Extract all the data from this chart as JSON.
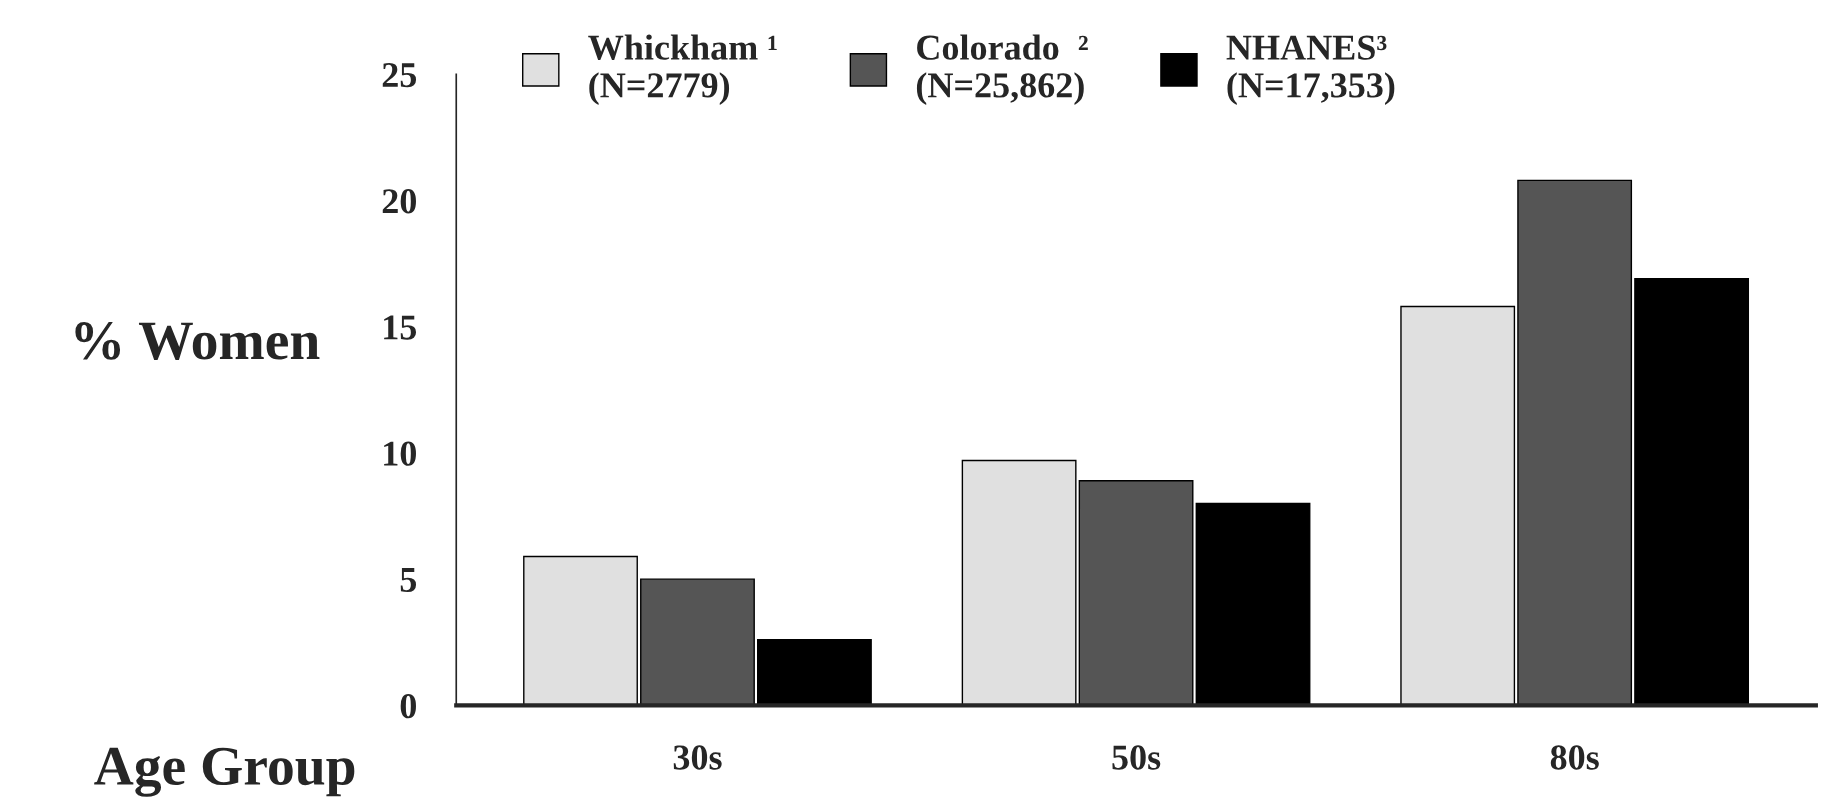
{
  "chart_data": {
    "type": "bar",
    "categories": [
      "30s",
      "50s",
      "80s"
    ],
    "series": [
      {
        "name": "Whickham ¹\n(N=2779)",
        "color": "#e0e0e0",
        "values": [
          5.9,
          9.7,
          15.8
        ]
      },
      {
        "name": "Colorado  ²\n(N=25,862)",
        "color": "#555555",
        "values": [
          5.0,
          8.9,
          20.8
        ]
      },
      {
        "name": "NHANES³\n(N=17,353)",
        "color": "#000000",
        "values": [
          2.6,
          8.0,
          16.9
        ]
      }
    ],
    "ylabel": "% Women",
    "xlabel": "Age Group",
    "ylim": [
      0,
      25
    ],
    "yticks": [
      0,
      5,
      10,
      15,
      20,
      25
    ],
    "grid": false,
    "legend": "top"
  }
}
